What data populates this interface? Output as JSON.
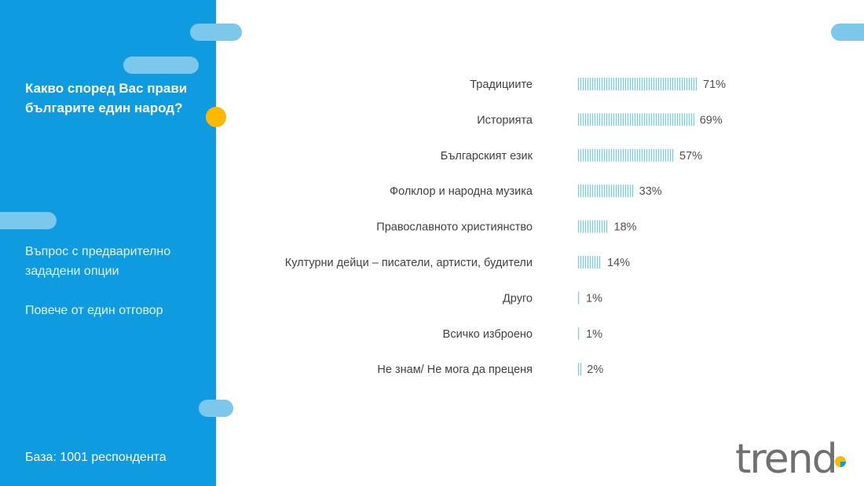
{
  "sidebar": {
    "question": "Какво според Вас прави българите един народ?",
    "note_1": "Въпрос с предварително зададени опции",
    "note_2": "Повече от един отговор",
    "base": "База:  1001 респондента"
  },
  "brand": {
    "logo_text": "trend"
  },
  "colors": {
    "sidebar_bg": "#0f9be0",
    "pill": "#7cc8ec",
    "accent_dot": "#fbb900",
    "bar": "#7cc8ec",
    "label": "#404040",
    "value": "#505050"
  },
  "chart_data": {
    "type": "bar",
    "orientation": "horizontal",
    "categories": [
      "Традициите",
      "Историята",
      "Българският език",
      "Фолклор и народна музика",
      "Православното християнство",
      "Културни дейци – писатели, артисти, будители",
      "Друго",
      "Всичко изброено",
      "Не знам/ Не мога да преценя"
    ],
    "values": [
      71,
      69,
      57,
      33,
      18,
      14,
      1,
      1,
      2
    ],
    "value_labels": [
      "71%",
      "69%",
      "57%",
      "33%",
      "18%",
      "14%",
      "1%",
      "1%",
      "2%"
    ],
    "unit": "%",
    "xlim": [
      0,
      100
    ],
    "grid": false,
    "legend": "none"
  }
}
